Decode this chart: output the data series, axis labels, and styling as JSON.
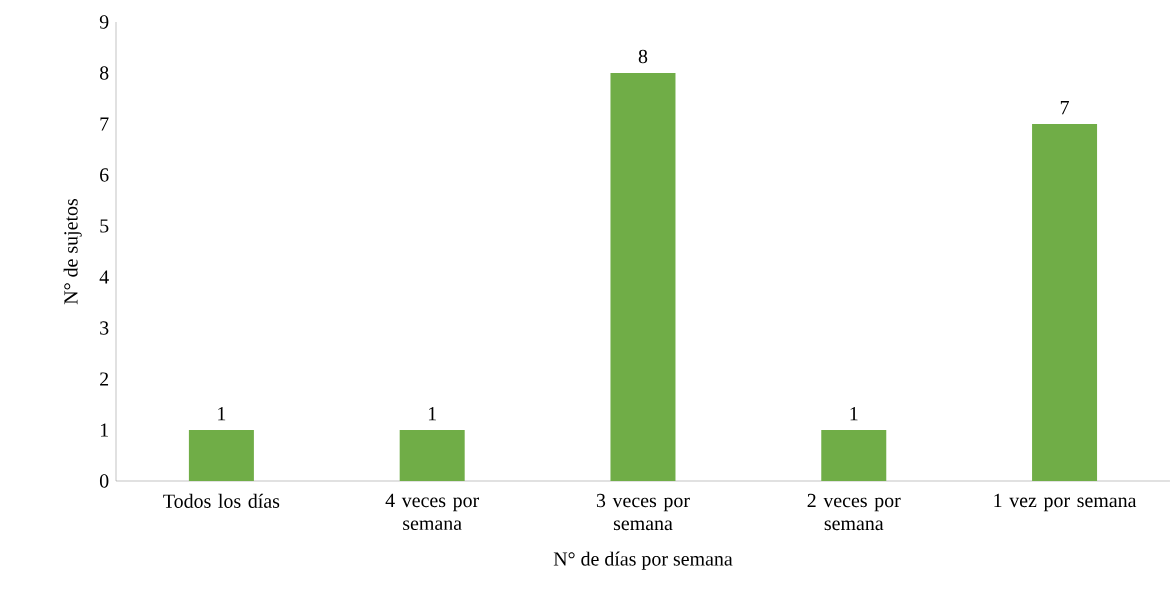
{
  "chart_data": {
    "type": "bar",
    "xlabel": "N° de días por semana",
    "ylabel": "N° de sujetos",
    "categories": [
      "Todos los días",
      "4 veces por semana",
      "3 veces por semana",
      "2 veces por semana",
      "1 vez por semana"
    ],
    "values": [
      1,
      1,
      8,
      1,
      7
    ],
    "color": "#70ad47",
    "ylim": [
      0,
      9
    ],
    "yticks": [
      0,
      1,
      2,
      3,
      4,
      5,
      6,
      7,
      8,
      9
    ],
    "data_labels": true
  }
}
